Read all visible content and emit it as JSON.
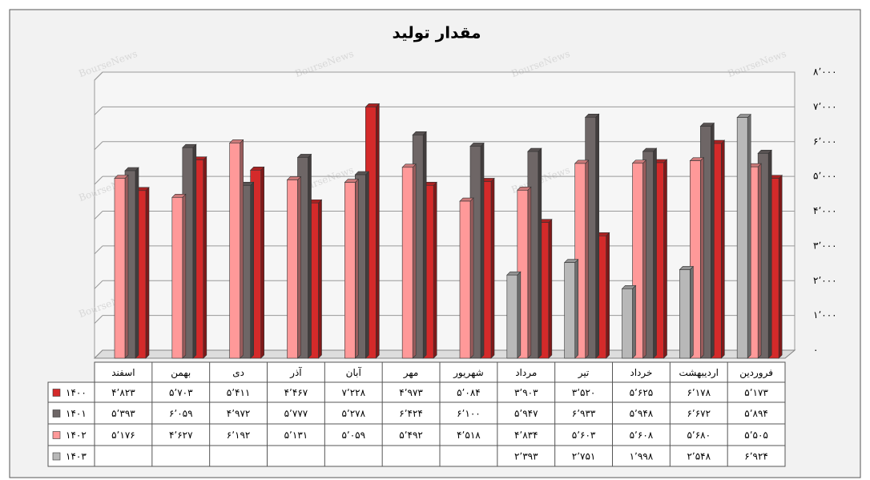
{
  "chart_data": {
    "type": "bar3d",
    "title": "مقدار تولید",
    "watermark": "BourseNews",
    "categories": [
      "اسفند",
      "بهمن",
      "دی",
      "آذر",
      "آبان",
      "مهر",
      "شهریور",
      "مرداد",
      "تیر",
      "خرداد",
      "اردیبهشت",
      "فروردین"
    ],
    "series": [
      {
        "name": "۱۴۰۰",
        "color": "#d42a2a",
        "values": [
          4823,
          5703,
          5411,
          4467,
          7228,
          4973,
          5084,
          3903,
          3520,
          5625,
          6178,
          5173
        ],
        "value_labels": [
          "۴٬۸۲۳",
          "۵٬۷۰۳",
          "۵٬۴۱۱",
          "۴٬۴۶۷",
          "۷٬۲۲۸",
          "۴٬۹۷۳",
          "۵٬۰۸۴",
          "۳٬۹۰۳",
          "۳٬۵۲۰",
          "۵٬۶۲۵",
          "۶٬۱۷۸",
          "۵٬۱۷۳"
        ]
      },
      {
        "name": "۱۴۰۱",
        "color": "#6e6666",
        "values": [
          5393,
          6059,
          4972,
          5777,
          5278,
          6424,
          6100,
          5947,
          6933,
          5948,
          6672,
          5894
        ],
        "value_labels": [
          "۵٬۳۹۳",
          "۶٬۰۵۹",
          "۴٬۹۷۲",
          "۵٬۷۷۷",
          "۵٬۲۷۸",
          "۶٬۴۲۴",
          "۶٬۱۰۰",
          "۵٬۹۴۷",
          "۶٬۹۳۳",
          "۵٬۹۴۸",
          "۶٬۶۷۲",
          "۵٬۸۹۴"
        ]
      },
      {
        "name": "۱۴۰۲",
        "color": "#ff9999",
        "values": [
          5176,
          4627,
          6192,
          5131,
          5059,
          5492,
          4518,
          4834,
          5603,
          5608,
          5680,
          5505
        ],
        "value_labels": [
          "۵٬۱۷۶",
          "۴٬۶۲۷",
          "۶٬۱۹۲",
          "۵٬۱۳۱",
          "۵٬۰۵۹",
          "۵٬۴۹۲",
          "۴٬۵۱۸",
          "۴٬۸۳۴",
          "۵٬۶۰۳",
          "۵٬۶۰۸",
          "۵٬۶۸۰",
          "۵٬۵۰۵"
        ]
      },
      {
        "name": "۱۴۰۳",
        "color": "#b8b8b8",
        "values": [
          null,
          null,
          null,
          null,
          null,
          null,
          null,
          2393,
          2751,
          1998,
          2548,
          6924
        ],
        "value_labels": [
          null,
          null,
          null,
          null,
          null,
          null,
          null,
          "۲٬۳۹۳",
          "۲٬۷۵۱",
          "۱٬۹۹۸",
          "۲٬۵۴۸",
          "۶٬۹۲۴"
        ]
      }
    ],
    "ylim": [
      0,
      8000
    ],
    "yticks": [
      {
        "value": 0,
        "label": "۰"
      },
      {
        "value": 1000,
        "label": "۱٬۰۰۰"
      },
      {
        "value": 2000,
        "label": "۲٬۰۰۰"
      },
      {
        "value": 3000,
        "label": "۳٬۰۰۰"
      },
      {
        "value": 4000,
        "label": "۴٬۰۰۰"
      },
      {
        "value": 5000,
        "label": "۵٬۰۰۰"
      },
      {
        "value": 6000,
        "label": "۶٬۰۰۰"
      },
      {
        "value": 7000,
        "label": "۷٬۰۰۰"
      },
      {
        "value": 8000,
        "label": "۸٬۰۰۰"
      }
    ],
    "grid": true
  }
}
